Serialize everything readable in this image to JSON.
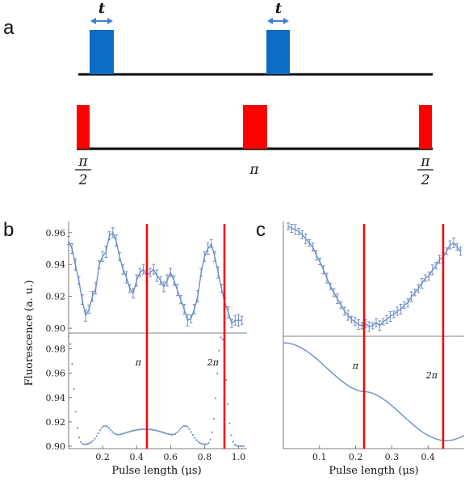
{
  "panel_a": {
    "letter": "a",
    "blue_pulse_label": "t",
    "red_pulse_labels": {
      "half_num": "π",
      "half_den": "2",
      "pi": "π"
    }
  },
  "panel_b": {
    "letter": "b",
    "pi_label": "π",
    "twopi_label": "2π"
  },
  "panel_c": {
    "letter": "c",
    "pi_label": "π",
    "twopi_label": "2π"
  },
  "chart_data": [
    {
      "id": "b-measured",
      "type": "line",
      "xlabel": "Pulse length (μs)",
      "ylabel": "Fluorescence (a. u.)",
      "xlim": [
        0.0,
        1.05
      ],
      "ylim": [
        0.897,
        0.967
      ],
      "yticks": [
        0.9,
        0.92,
        0.94,
        0.96
      ],
      "markers": [
        0.45,
        0.9
      ],
      "x": [
        0.0,
        0.02,
        0.04,
        0.06,
        0.08,
        0.1,
        0.12,
        0.14,
        0.16,
        0.18,
        0.2,
        0.22,
        0.24,
        0.26,
        0.28,
        0.3,
        0.32,
        0.34,
        0.36,
        0.38,
        0.4,
        0.42,
        0.44,
        0.46,
        0.48,
        0.5,
        0.52,
        0.54,
        0.56,
        0.58,
        0.6,
        0.62,
        0.64,
        0.66,
        0.68,
        0.7,
        0.72,
        0.74,
        0.76,
        0.78,
        0.8,
        0.82,
        0.84,
        0.86,
        0.88,
        0.9,
        0.92,
        0.94,
        0.96,
        0.98,
        1.0,
        1.02
      ],
      "y": [
        0.955,
        0.95,
        0.94,
        0.93,
        0.918,
        0.908,
        0.912,
        0.92,
        0.925,
        0.94,
        0.945,
        0.948,
        0.958,
        0.96,
        0.955,
        0.945,
        0.937,
        0.932,
        0.925,
        0.922,
        0.93,
        0.935,
        0.937,
        0.933,
        0.935,
        0.937,
        0.933,
        0.93,
        0.926,
        0.93,
        0.935,
        0.93,
        0.924,
        0.918,
        0.912,
        0.905,
        0.906,
        0.912,
        0.92,
        0.935,
        0.945,
        0.95,
        0.953,
        0.945,
        0.935,
        0.925,
        0.916,
        0.91,
        0.903,
        0.905,
        0.905,
        0.905
      ]
    },
    {
      "id": "b-theory",
      "type": "scatter",
      "xlim": [
        0.0,
        1.05
      ],
      "ylim": [
        0.898,
        0.993
      ],
      "xticks": [
        0.2,
        0.4,
        0.6,
        0.8,
        1.0
      ],
      "yticks": [
        0.9,
        0.92,
        0.94,
        0.96,
        0.98
      ],
      "markers": [
        0.45,
        0.9
      ]
    },
    {
      "id": "c-measured",
      "type": "line",
      "xlim": [
        0.0,
        0.5
      ],
      "markers": [
        0.225,
        0.45
      ],
      "x": [
        0.0,
        0.01,
        0.02,
        0.03,
        0.04,
        0.05,
        0.06,
        0.07,
        0.08,
        0.09,
        0.1,
        0.11,
        0.12,
        0.13,
        0.14,
        0.15,
        0.16,
        0.17,
        0.18,
        0.19,
        0.2,
        0.21,
        0.22,
        0.23,
        0.24,
        0.25,
        0.26,
        0.27,
        0.28,
        0.29,
        0.3,
        0.31,
        0.32,
        0.33,
        0.34,
        0.35,
        0.36,
        0.37,
        0.38,
        0.39,
        0.4,
        0.41,
        0.42,
        0.43,
        0.44,
        0.45,
        0.46,
        0.47,
        0.48,
        0.49
      ],
      "y": [
        1.0,
        0.98,
        0.97,
        0.95,
        0.92,
        0.88,
        0.84,
        0.8,
        0.72,
        0.66,
        0.58,
        0.5,
        0.42,
        0.36,
        0.3,
        0.24,
        0.18,
        0.14,
        0.1,
        0.08,
        0.05,
        0.04,
        0.06,
        0.03,
        0.04,
        0.07,
        0.04,
        0.08,
        0.1,
        0.13,
        0.15,
        0.18,
        0.2,
        0.24,
        0.26,
        0.32,
        0.36,
        0.4,
        0.45,
        0.5,
        0.52,
        0.58,
        0.62,
        0.68,
        0.7,
        0.76,
        0.82,
        0.84,
        0.8,
        0.76
      ]
    },
    {
      "id": "c-theory",
      "type": "line",
      "xlabel": "Pulse length (μs)",
      "xlim": [
        0.0,
        0.5
      ],
      "xticks": [
        0.1,
        0.2,
        0.3,
        0.4
      ],
      "markers": [
        0.225,
        0.45
      ]
    }
  ]
}
